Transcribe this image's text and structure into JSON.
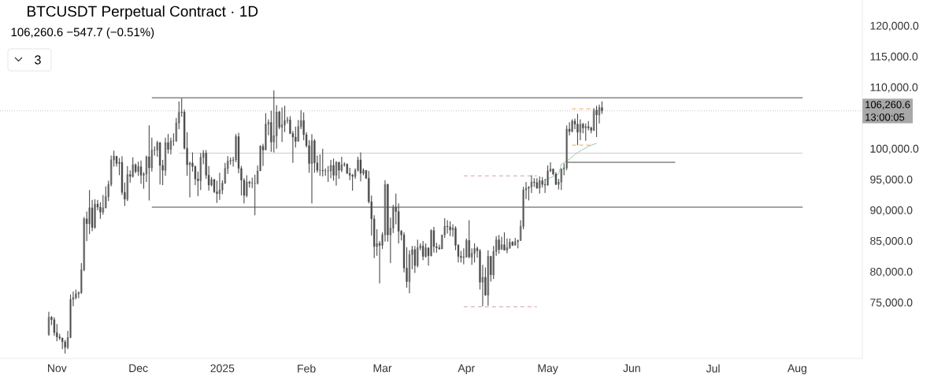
{
  "chart_data": {
    "type": "candlestick",
    "title": "BTCUSDT Perpetual Contract · 1D",
    "subtitle": "106,260.6 −547.7 (−0.51%)",
    "annotations": [
      "13:00:05",
      "3"
    ],
    "color": "#4a4a4a",
    "x": [
      "2024-10-29",
      "2024-10-30",
      "2024-10-31",
      "2024-11-01",
      "2024-11-02",
      "2024-11-03",
      "2024-11-04",
      "2024-11-05",
      "2024-11-06",
      "2024-11-07",
      "2024-11-08",
      "2024-11-09",
      "2024-11-10",
      "2024-11-11",
      "2024-11-12",
      "2024-11-13",
      "2024-11-14",
      "2024-11-15",
      "2024-11-16",
      "2024-11-17",
      "2024-11-18",
      "2024-11-19",
      "2024-11-20",
      "2024-11-21",
      "2024-11-22",
      "2024-11-23",
      "2024-11-24",
      "2024-11-25",
      "2024-11-26",
      "2024-11-27",
      "2024-11-28",
      "2024-11-29",
      "2024-11-30",
      "2024-12-01",
      "2024-12-02",
      "2024-12-03",
      "2024-12-04",
      "2024-12-05",
      "2024-12-06",
      "2024-12-07",
      "2024-12-08",
      "2024-12-09",
      "2024-12-10",
      "2024-12-11",
      "2024-12-12",
      "2024-12-13",
      "2024-12-14",
      "2024-12-15",
      "2024-12-16",
      "2024-12-17",
      "2024-12-18",
      "2024-12-19",
      "2024-12-20",
      "2024-12-21",
      "2024-12-22",
      "2024-12-23",
      "2024-12-24",
      "2024-12-25",
      "2024-12-26",
      "2024-12-27",
      "2024-12-28",
      "2024-12-29",
      "2024-12-30",
      "2024-12-31",
      "2025-01-01",
      "2025-01-02",
      "2025-01-03",
      "2025-01-04",
      "2025-01-05",
      "2025-01-06",
      "2025-01-07",
      "2025-01-08",
      "2025-01-09",
      "2025-01-10",
      "2025-01-11",
      "2025-01-12",
      "2025-01-13",
      "2025-01-14",
      "2025-01-15",
      "2025-01-16",
      "2025-01-17",
      "2025-01-18",
      "2025-01-19",
      "2025-01-20",
      "2025-01-21",
      "2025-01-22",
      "2025-01-23",
      "2025-01-24",
      "2025-01-25",
      "2025-01-26",
      "2025-01-27",
      "2025-01-28",
      "2025-01-29",
      "2025-01-30",
      "2025-01-31",
      "2025-02-01",
      "2025-02-02",
      "2025-02-03",
      "2025-02-04",
      "2025-02-05",
      "2025-02-06",
      "2025-02-07",
      "2025-02-08",
      "2025-02-09",
      "2025-02-10",
      "2025-02-11",
      "2025-02-12",
      "2025-02-13",
      "2025-02-14",
      "2025-02-15",
      "2025-02-16",
      "2025-02-17",
      "2025-02-18",
      "2025-02-19",
      "2025-02-20",
      "2025-02-21",
      "2025-02-22",
      "2025-02-23",
      "2025-02-24",
      "2025-02-25",
      "2025-02-26",
      "2025-02-27",
      "2025-02-28",
      "2025-03-01",
      "2025-03-02",
      "2025-03-03",
      "2025-03-04",
      "2025-03-05",
      "2025-03-06",
      "2025-03-07",
      "2025-03-08",
      "2025-03-09",
      "2025-03-10",
      "2025-03-11",
      "2025-03-12",
      "2025-03-13",
      "2025-03-14",
      "2025-03-15",
      "2025-03-16",
      "2025-03-17",
      "2025-03-18",
      "2025-03-19",
      "2025-03-20",
      "2025-03-21",
      "2025-03-22",
      "2025-03-23",
      "2025-03-24",
      "2025-03-25",
      "2025-03-26",
      "2025-03-27",
      "2025-03-28",
      "2025-03-29",
      "2025-03-30",
      "2025-03-31",
      "2025-04-01",
      "2025-04-02",
      "2025-04-03",
      "2025-04-04",
      "2025-04-05",
      "2025-04-06",
      "2025-04-07",
      "2025-04-08",
      "2025-04-09",
      "2025-04-10",
      "2025-04-11",
      "2025-04-12",
      "2025-04-13",
      "2025-04-14",
      "2025-04-15",
      "2025-04-16",
      "2025-04-17",
      "2025-04-18",
      "2025-04-19",
      "2025-04-20",
      "2025-04-21",
      "2025-04-22",
      "2025-04-23",
      "2025-04-24",
      "2025-04-25",
      "2025-04-26",
      "2025-04-27",
      "2025-04-28",
      "2025-04-29",
      "2025-04-30",
      "2025-05-01",
      "2025-05-02",
      "2025-05-03",
      "2025-05-04",
      "2025-05-05",
      "2025-05-06",
      "2025-05-07",
      "2025-05-08",
      "2025-05-09",
      "2025-05-10",
      "2025-05-11",
      "2025-05-12",
      "2025-05-13",
      "2025-05-14",
      "2025-05-15",
      "2025-05-16",
      "2025-05-17",
      "2025-05-18",
      "2025-05-19",
      "2025-05-20",
      "2025-05-21"
    ],
    "ohlc": [
      [
        69900,
        73600,
        69700,
        72700
      ],
      [
        72700,
        72900,
        71400,
        72300
      ],
      [
        72300,
        72700,
        69700,
        70200
      ],
      [
        70200,
        71600,
        68800,
        69500
      ],
      [
        69500,
        70000,
        69000,
        69300
      ],
      [
        69300,
        69400,
        67500,
        68700
      ],
      [
        68700,
        69000,
        66800,
        67800
      ],
      [
        67800,
        70500,
        67500,
        69400
      ],
      [
        69400,
        76400,
        69300,
        75600
      ],
      [
        75600,
        76900,
        74500,
        75900
      ],
      [
        75900,
        77200,
        75600,
        76500
      ],
      [
        76500,
        76900,
        75800,
        76700
      ],
      [
        76700,
        81500,
        76500,
        80400
      ],
      [
        80400,
        89000,
        80200,
        88700
      ],
      [
        88700,
        89900,
        85100,
        87900
      ],
      [
        87900,
        93400,
        86200,
        90500
      ],
      [
        90500,
        91800,
        86700,
        87300
      ],
      [
        87300,
        91900,
        87100,
        91100
      ],
      [
        91100,
        91800,
        90100,
        90600
      ],
      [
        90600,
        91400,
        88700,
        89800
      ],
      [
        89800,
        92600,
        89400,
        90500
      ],
      [
        90500,
        94000,
        90400,
        92300
      ],
      [
        92300,
        94900,
        91600,
        94300
      ],
      [
        94300,
        99000,
        94000,
        98300
      ],
      [
        98300,
        99800,
        97200,
        98900
      ],
      [
        98900,
        98900,
        97200,
        97700
      ],
      [
        97700,
        98600,
        95800,
        97900
      ],
      [
        97900,
        98900,
        92600,
        93000
      ],
      [
        93000,
        94600,
        90800,
        91900
      ],
      [
        91900,
        97300,
        91600,
        95900
      ],
      [
        95900,
        96600,
        94600,
        95600
      ],
      [
        95600,
        98700,
        95400,
        97500
      ],
      [
        97500,
        97700,
        96100,
        96400
      ],
      [
        96400,
        98000,
        95700,
        97200
      ],
      [
        97200,
        98200,
        94400,
        95800
      ],
      [
        95800,
        96300,
        93600,
        96000
      ],
      [
        96000,
        99000,
        94700,
        98800
      ],
      [
        98800,
        103900,
        91700,
        97000
      ],
      [
        97000,
        101900,
        96400,
        99900
      ],
      [
        99900,
        100500,
        99000,
        99900
      ],
      [
        99900,
        101400,
        98800,
        101100
      ],
      [
        101100,
        101200,
        94300,
        97400
      ],
      [
        97400,
        98300,
        94200,
        96600
      ],
      [
        96600,
        101900,
        95700,
        101100
      ],
      [
        101100,
        102500,
        99300,
        100000
      ],
      [
        100000,
        101900,
        99200,
        101400
      ],
      [
        101400,
        102600,
        100600,
        101400
      ],
      [
        101400,
        105100,
        101200,
        104300
      ],
      [
        104300,
        107800,
        103300,
        106000
      ],
      [
        106000,
        108300,
        105300,
        106100
      ],
      [
        106100,
        106500,
        100000,
        100200
      ],
      [
        100200,
        102800,
        95700,
        97500
      ],
      [
        97500,
        98000,
        92200,
        97800
      ],
      [
        97800,
        99500,
        96400,
        97200
      ],
      [
        97200,
        97400,
        94200,
        95200
      ],
      [
        95200,
        96400,
        92400,
        94900
      ],
      [
        94900,
        99400,
        93400,
        98700
      ],
      [
        98700,
        99900,
        97600,
        99400
      ],
      [
        99400,
        99900,
        95200,
        95800
      ],
      [
        95800,
        97300,
        93300,
        94200
      ],
      [
        94200,
        95500,
        94000,
        95100
      ],
      [
        95100,
        95200,
        92900,
        93100
      ],
      [
        93100,
        94900,
        91300,
        92800
      ],
      [
        92800,
        96200,
        91800,
        93400
      ],
      [
        93400,
        95000,
        92700,
        94500
      ],
      [
        94500,
        97800,
        94400,
        96900
      ],
      [
        96900,
        98900,
        96000,
        98100
      ],
      [
        98100,
        98700,
        97500,
        98200
      ],
      [
        98200,
        98800,
        97200,
        98300
      ],
      [
        98300,
        102500,
        97900,
        102100
      ],
      [
        102100,
        102700,
        96100,
        96900
      ],
      [
        96900,
        97300,
        92500,
        95000
      ],
      [
        95000,
        95300,
        91200,
        92500
      ],
      [
        92500,
        95800,
        92200,
        94700
      ],
      [
        94700,
        94900,
        93800,
        94500
      ],
      [
        94500,
        95400,
        93700,
        94500
      ],
      [
        94500,
        95900,
        89300,
        94500
      ],
      [
        94500,
        97400,
        94300,
        96500
      ],
      [
        96500,
        100700,
        96500,
        100500
      ],
      [
        100500,
        100900,
        97300,
        99900
      ],
      [
        99900,
        105900,
        99900,
        104100
      ],
      [
        104100,
        104900,
        102300,
        104400
      ],
      [
        104400,
        106300,
        99600,
        101200
      ],
      [
        101200,
        109600,
        99500,
        102200
      ],
      [
        102200,
        107200,
        100100,
        106100
      ],
      [
        106100,
        106300,
        103300,
        103600
      ],
      [
        103600,
        106800,
        101200,
        104000
      ],
      [
        104000,
        107100,
        102800,
        104700
      ],
      [
        104700,
        105300,
        104200,
        104800
      ],
      [
        104800,
        105400,
        102500,
        102600
      ],
      [
        102600,
        103000,
        97800,
        102000
      ],
      [
        102000,
        103700,
        100300,
        101300
      ],
      [
        101300,
        104800,
        101300,
        103700
      ],
      [
        103700,
        106400,
        103300,
        104700
      ],
      [
        104700,
        106000,
        101500,
        102400
      ],
      [
        102400,
        102800,
        100300,
        100600
      ],
      [
        100600,
        101500,
        96200,
        97700
      ],
      [
        97700,
        102500,
        91200,
        101400
      ],
      [
        101400,
        101700,
        96200,
        97800
      ],
      [
        97800,
        99000,
        96200,
        96600
      ],
      [
        96600,
        99200,
        95700,
        96600
      ],
      [
        96600,
        100100,
        95600,
        96500
      ],
      [
        96500,
        96900,
        95700,
        96500
      ],
      [
        96500,
        97300,
        94700,
        96500
      ],
      [
        96500,
        98300,
        95300,
        97400
      ],
      [
        97400,
        98500,
        94900,
        95800
      ],
      [
        95800,
        98100,
        94100,
        97900
      ],
      [
        97900,
        98000,
        95200,
        96600
      ],
      [
        96600,
        98800,
        96300,
        97500
      ],
      [
        97500,
        97900,
        97200,
        97600
      ],
      [
        97600,
        97700,
        96000,
        96100
      ],
      [
        96100,
        97000,
        95000,
        95800
      ],
      [
        95800,
        96000,
        93300,
        95600
      ],
      [
        95600,
        96900,
        95200,
        96600
      ],
      [
        96600,
        98800,
        96400,
        98300
      ],
      [
        98300,
        99500,
        94800,
        96100
      ],
      [
        96100,
        96900,
        95800,
        96600
      ],
      [
        96600,
        96600,
        95200,
        95300
      ],
      [
        95300,
        96500,
        91200,
        91500
      ],
      [
        91500,
        92500,
        86000,
        88700
      ],
      [
        88700,
        89300,
        82300,
        84200
      ],
      [
        84200,
        87000,
        82700,
        84700
      ],
      [
        84700,
        85100,
        78200,
        84400
      ],
      [
        84400,
        86500,
        83800,
        86100
      ],
      [
        86100,
        95000,
        85000,
        94300
      ],
      [
        94300,
        94400,
        85000,
        86100
      ],
      [
        86100,
        88900,
        81500,
        87200
      ],
      [
        87200,
        91000,
        86400,
        90600
      ],
      [
        90600,
        92800,
        87800,
        89900
      ],
      [
        89900,
        91200,
        84700,
        86700
      ],
      [
        86700,
        86900,
        85200,
        86100
      ],
      [
        86100,
        86500,
        80000,
        80700
      ],
      [
        80700,
        84100,
        77500,
        78500
      ],
      [
        78500,
        83600,
        76600,
        82900
      ],
      [
        82900,
        84300,
        80500,
        83700
      ],
      [
        83700,
        84300,
        79900,
        81100
      ],
      [
        81100,
        85300,
        80800,
        84000
      ],
      [
        84000,
        84700,
        83600,
        84300
      ],
      [
        84300,
        85100,
        82000,
        82600
      ],
      [
        82600,
        84700,
        82400,
        84000
      ],
      [
        84000,
        84000,
        81100,
        82700
      ],
      [
        82700,
        87000,
        82600,
        86800
      ],
      [
        86800,
        87400,
        83200,
        84200
      ],
      [
        84200,
        84800,
        83200,
        84000
      ],
      [
        84000,
        84500,
        83700,
        83800
      ],
      [
        83800,
        86100,
        83800,
        86100
      ],
      [
        86100,
        88800,
        85600,
        87500
      ],
      [
        87500,
        88500,
        86300,
        87400
      ],
      [
        87400,
        88300,
        85900,
        86900
      ],
      [
        86900,
        87800,
        85800,
        87200
      ],
      [
        87200,
        87500,
        83600,
        84400
      ],
      [
        84400,
        84600,
        81600,
        82600
      ],
      [
        82600,
        83500,
        81600,
        82400
      ],
      [
        82400,
        83900,
        81300,
        82500
      ],
      [
        82500,
        85500,
        82400,
        85200
      ],
      [
        85200,
        88500,
        82300,
        82500
      ],
      [
        82500,
        83900,
        81200,
        83100
      ],
      [
        83100,
        84700,
        81600,
        83900
      ],
      [
        83900,
        84200,
        82400,
        83500
      ],
      [
        83500,
        83800,
        77200,
        78400
      ],
      [
        78400,
        81200,
        74500,
        79200
      ],
      [
        79200,
        80800,
        76200,
        76300
      ],
      [
        76300,
        83600,
        74600,
        82600
      ],
      [
        82600,
        82700,
        78500,
        79600
      ],
      [
        79600,
        84300,
        78900,
        83400
      ],
      [
        83400,
        85900,
        82700,
        85300
      ],
      [
        85300,
        86100,
        83000,
        83700
      ],
      [
        83700,
        85800,
        83700,
        84500
      ],
      [
        84500,
        86500,
        83600,
        83600
      ],
      [
        83600,
        85500,
        83100,
        84000
      ],
      [
        84000,
        85500,
        83800,
        84900
      ],
      [
        84900,
        85100,
        84300,
        84400
      ],
      [
        84400,
        85600,
        84400,
        85000
      ],
      [
        85000,
        85300,
        83900,
        85200
      ],
      [
        85200,
        88500,
        85100,
        87500
      ],
      [
        87500,
        93900,
        87000,
        93400
      ],
      [
        93400,
        94700,
        91900,
        93700
      ],
      [
        93700,
        94000,
        91700,
        93900
      ],
      [
        93900,
        95800,
        92900,
        94700
      ],
      [
        94700,
        95300,
        93900,
        94600
      ],
      [
        94600,
        95300,
        93600,
        93700
      ],
      [
        93700,
        95600,
        92800,
        94900
      ],
      [
        94900,
        95500,
        93800,
        94300
      ],
      [
        94300,
        95200,
        92900,
        94200
      ],
      [
        94200,
        97400,
        94100,
        96500
      ],
      [
        96500,
        97900,
        96300,
        96800
      ],
      [
        96800,
        96900,
        95800,
        96000
      ],
      [
        96000,
        96300,
        94200,
        94300
      ],
      [
        94300,
        95200,
        93500,
        94700
      ],
      [
        94700,
        96900,
        93400,
        96800
      ],
      [
        96800,
        97700,
        95800,
        97000
      ],
      [
        97000,
        103900,
        96900,
        103300
      ],
      [
        103300,
        104400,
        102300,
        102900
      ],
      [
        102900,
        104900,
        102800,
        104600
      ],
      [
        104600,
        105000,
        103300,
        104100
      ],
      [
        104100,
        105800,
        100700,
        102800
      ],
      [
        102800,
        104900,
        101500,
        104100
      ],
      [
        104100,
        104300,
        102600,
        103500
      ],
      [
        103500,
        104200,
        101400,
        103700
      ],
      [
        103700,
        104600,
        103100,
        103500
      ],
      [
        103500,
        103700,
        102600,
        103100
      ],
      [
        103100,
        106700,
        103000,
        106400
      ],
      [
        106400,
        107100,
        102000,
        105600
      ],
      [
        105600,
        107300,
        104200,
        106800
      ],
      [
        106800,
        107800,
        105800,
        106260.6
      ]
    ],
    "series": [
      {
        "type": "line",
        "color": "#333333",
        "line_style": "solid",
        "x": [
          "2024-12-06",
          "2025-08-03"
        ],
        "values": [
          108400,
          108400
        ]
      },
      {
        "type": "line",
        "color": "#333333",
        "line_style": "solid",
        "x": [
          "2024-12-06",
          "2025-08-03"
        ],
        "values": [
          90600,
          90600
        ]
      },
      {
        "type": "line",
        "color": "#c4c4c4",
        "line_style": "solid",
        "x": [
          "2024-12-16",
          "2025-08-03"
        ],
        "values": [
          99400,
          99400
        ]
      },
      {
        "type": "line",
        "color": "#333333",
        "line_style": "solid",
        "x": [
          "2025-05-08",
          "2025-05-08",
          "2025-06-17"
        ],
        "values": [
          96600,
          97900,
          97900
        ]
      },
      {
        "type": "line",
        "color": "#c99a9a",
        "line_style": "dashed",
        "x": [
          "2025-03-31",
          "2025-04-27"
        ],
        "values": [
          95700,
          95700
        ]
      },
      {
        "type": "line",
        "color": "#c99a9a",
        "line_style": "dashed",
        "x": [
          "2025-03-31",
          "2025-04-27"
        ],
        "values": [
          74400,
          74400
        ]
      },
      {
        "type": "line",
        "color": "#f0a030",
        "line_style": "dashed",
        "x": [
          "2025-05-10",
          "2025-05-17"
        ],
        "values": [
          106600,
          106600
        ]
      },
      {
        "type": "line",
        "color": "#f0a030",
        "line_style": "dashed",
        "x": [
          "2025-05-10",
          "2025-05-17"
        ],
        "values": [
          100700,
          100700
        ]
      },
      {
        "type": "line",
        "color": "#8fc79a",
        "line_style": "solid",
        "x": [
          "2025-04-30",
          "2025-05-05",
          "2025-05-06",
          "2025-05-09",
          "2025-05-12",
          "2025-05-16",
          "2025-05-19"
        ],
        "values": [
          95000,
          96000,
          97600,
          98400,
          99500,
          100500,
          101000
        ]
      }
    ],
    "ref_lines": [
      {
        "axis": "y",
        "value": 106260.6,
        "label": "106,260.6",
        "color": "#a8a8a8",
        "line_style": "dotted"
      }
    ],
    "xlim": [
      "2024-10-11",
      "2025-08-25"
    ],
    "ylim": [
      66000,
      124300
    ],
    "xticks": [
      {
        "value": "2024-11-01",
        "label": "Nov"
      },
      {
        "value": "2024-12-01",
        "label": "Dec"
      },
      {
        "value": "2025-01-01",
        "label": "2025"
      },
      {
        "value": "2025-02-01",
        "label": "Feb"
      },
      {
        "value": "2025-03-01",
        "label": "Mar"
      },
      {
        "value": "2025-04-01",
        "label": "Apr"
      },
      {
        "value": "2025-05-01",
        "label": "May"
      },
      {
        "value": "2025-06-01",
        "label": "Jun"
      },
      {
        "value": "2025-07-01",
        "label": "Jul"
      },
      {
        "value": "2025-08-01",
        "label": "Aug"
      }
    ],
    "yticks": [
      {
        "value": 75000,
        "label": "75,000.0"
      },
      {
        "value": 80000,
        "label": "80,000.0"
      },
      {
        "value": 85000,
        "label": "85,000.0"
      },
      {
        "value": 90000,
        "label": "90,000.0"
      },
      {
        "value": 95000,
        "label": "95,000.0"
      },
      {
        "value": 100000,
        "label": "100,000.0"
      },
      {
        "value": 110000,
        "label": "110,000.0"
      },
      {
        "value": 115000,
        "label": "115,000.0"
      },
      {
        "value": 120000,
        "label": "120,000.0"
      }
    ]
  }
}
